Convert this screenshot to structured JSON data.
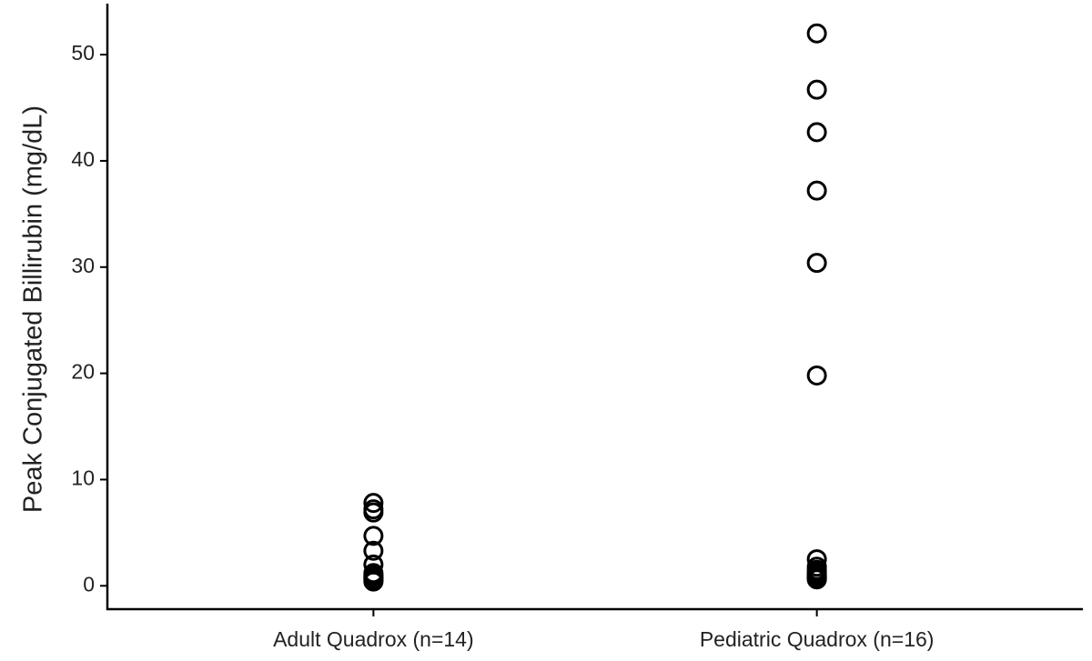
{
  "chart_data": {
    "type": "strip",
    "y_label": "Peak Conjugated Billirubin (mg/dL)",
    "categories": [
      "Adult Quadrox (n=14)",
      "Pediatric Quadrox (n=16)"
    ],
    "values": [
      [
        7.8,
        7.2,
        6.9,
        4.7,
        3.3,
        2.0,
        1.2,
        1.0,
        0.9,
        0.8,
        0.7,
        0.6,
        0.5,
        0.4
      ],
      [
        52.0,
        46.7,
        42.7,
        37.2,
        30.4,
        19.8,
        2.5,
        1.8,
        1.5,
        1.3,
        1.1,
        1.0,
        0.9,
        0.8,
        0.7,
        0.6
      ]
    ],
    "color": "#000000",
    "ylim": [
      -2.2,
      54.8
    ],
    "yticks": [
      0,
      10,
      20,
      30,
      40,
      50
    ],
    "grid": false
  }
}
